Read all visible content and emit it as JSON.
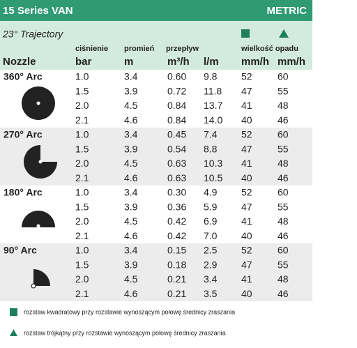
{
  "header": {
    "title": "15 Series VAN",
    "unit_system": "METRIC"
  },
  "subheader": {
    "trajectory": "23° Trajectory",
    "nozzle_label": "Nozzle"
  },
  "column_groups": [
    "ciśnienie",
    "promień",
    "przepływ",
    "wielkość opadu"
  ],
  "units": [
    "bar",
    "m",
    "m³/h",
    "l/m",
    "mm/h",
    "mm/h"
  ],
  "groups": [
    {
      "label": "360° Arc",
      "rows": [
        [
          "1.0",
          "3.4",
          "0.60",
          "9.8",
          "52",
          "60"
        ],
        [
          "1.5",
          "3.9",
          "0.72",
          "11.8",
          "47",
          "55"
        ],
        [
          "2.0",
          "4.5",
          "0.84",
          "13.7",
          "41",
          "48"
        ],
        [
          "2.1",
          "4.6",
          "0.84",
          "14.0",
          "40",
          "46"
        ]
      ]
    },
    {
      "label": "270° Arc",
      "rows": [
        [
          "1.0",
          "3.4",
          "0.45",
          "7.4",
          "52",
          "60"
        ],
        [
          "1.5",
          "3.9",
          "0.54",
          "8.8",
          "47",
          "55"
        ],
        [
          "2.0",
          "4.5",
          "0.63",
          "10.3",
          "41",
          "48"
        ],
        [
          "2.1",
          "4.6",
          "0.63",
          "10.5",
          "40",
          "46"
        ]
      ]
    },
    {
      "label": "180° Arc",
      "rows": [
        [
          "1.0",
          "3.4",
          "0.30",
          "4.9",
          "52",
          "60"
        ],
        [
          "1.5",
          "3.9",
          "0.36",
          "5.9",
          "47",
          "55"
        ],
        [
          "2.0",
          "4.5",
          "0.42",
          "6.9",
          "41",
          "48"
        ],
        [
          "2.1",
          "4.6",
          "0.42",
          "7.0",
          "40",
          "46"
        ]
      ]
    },
    {
      "label": "90° Arc",
      "rows": [
        [
          "1.0",
          "3.4",
          "0.15",
          "2.5",
          "52",
          "60"
        ],
        [
          "1.5",
          "3.9",
          "0.18",
          "2.9",
          "47",
          "55"
        ],
        [
          "2.0",
          "4.5",
          "0.21",
          "3.4",
          "41",
          "48"
        ],
        [
          "2.1",
          "4.6",
          "0.21",
          "3.5",
          "40",
          "46"
        ]
      ]
    }
  ],
  "legend": [
    "rozstaw kwadratowy przy rozstawie wynoszącym połowę średnicy zraszania",
    "rozstaw trójkątny przy rozstawie wynoszącym połowę średnicy zraszania"
  ]
}
